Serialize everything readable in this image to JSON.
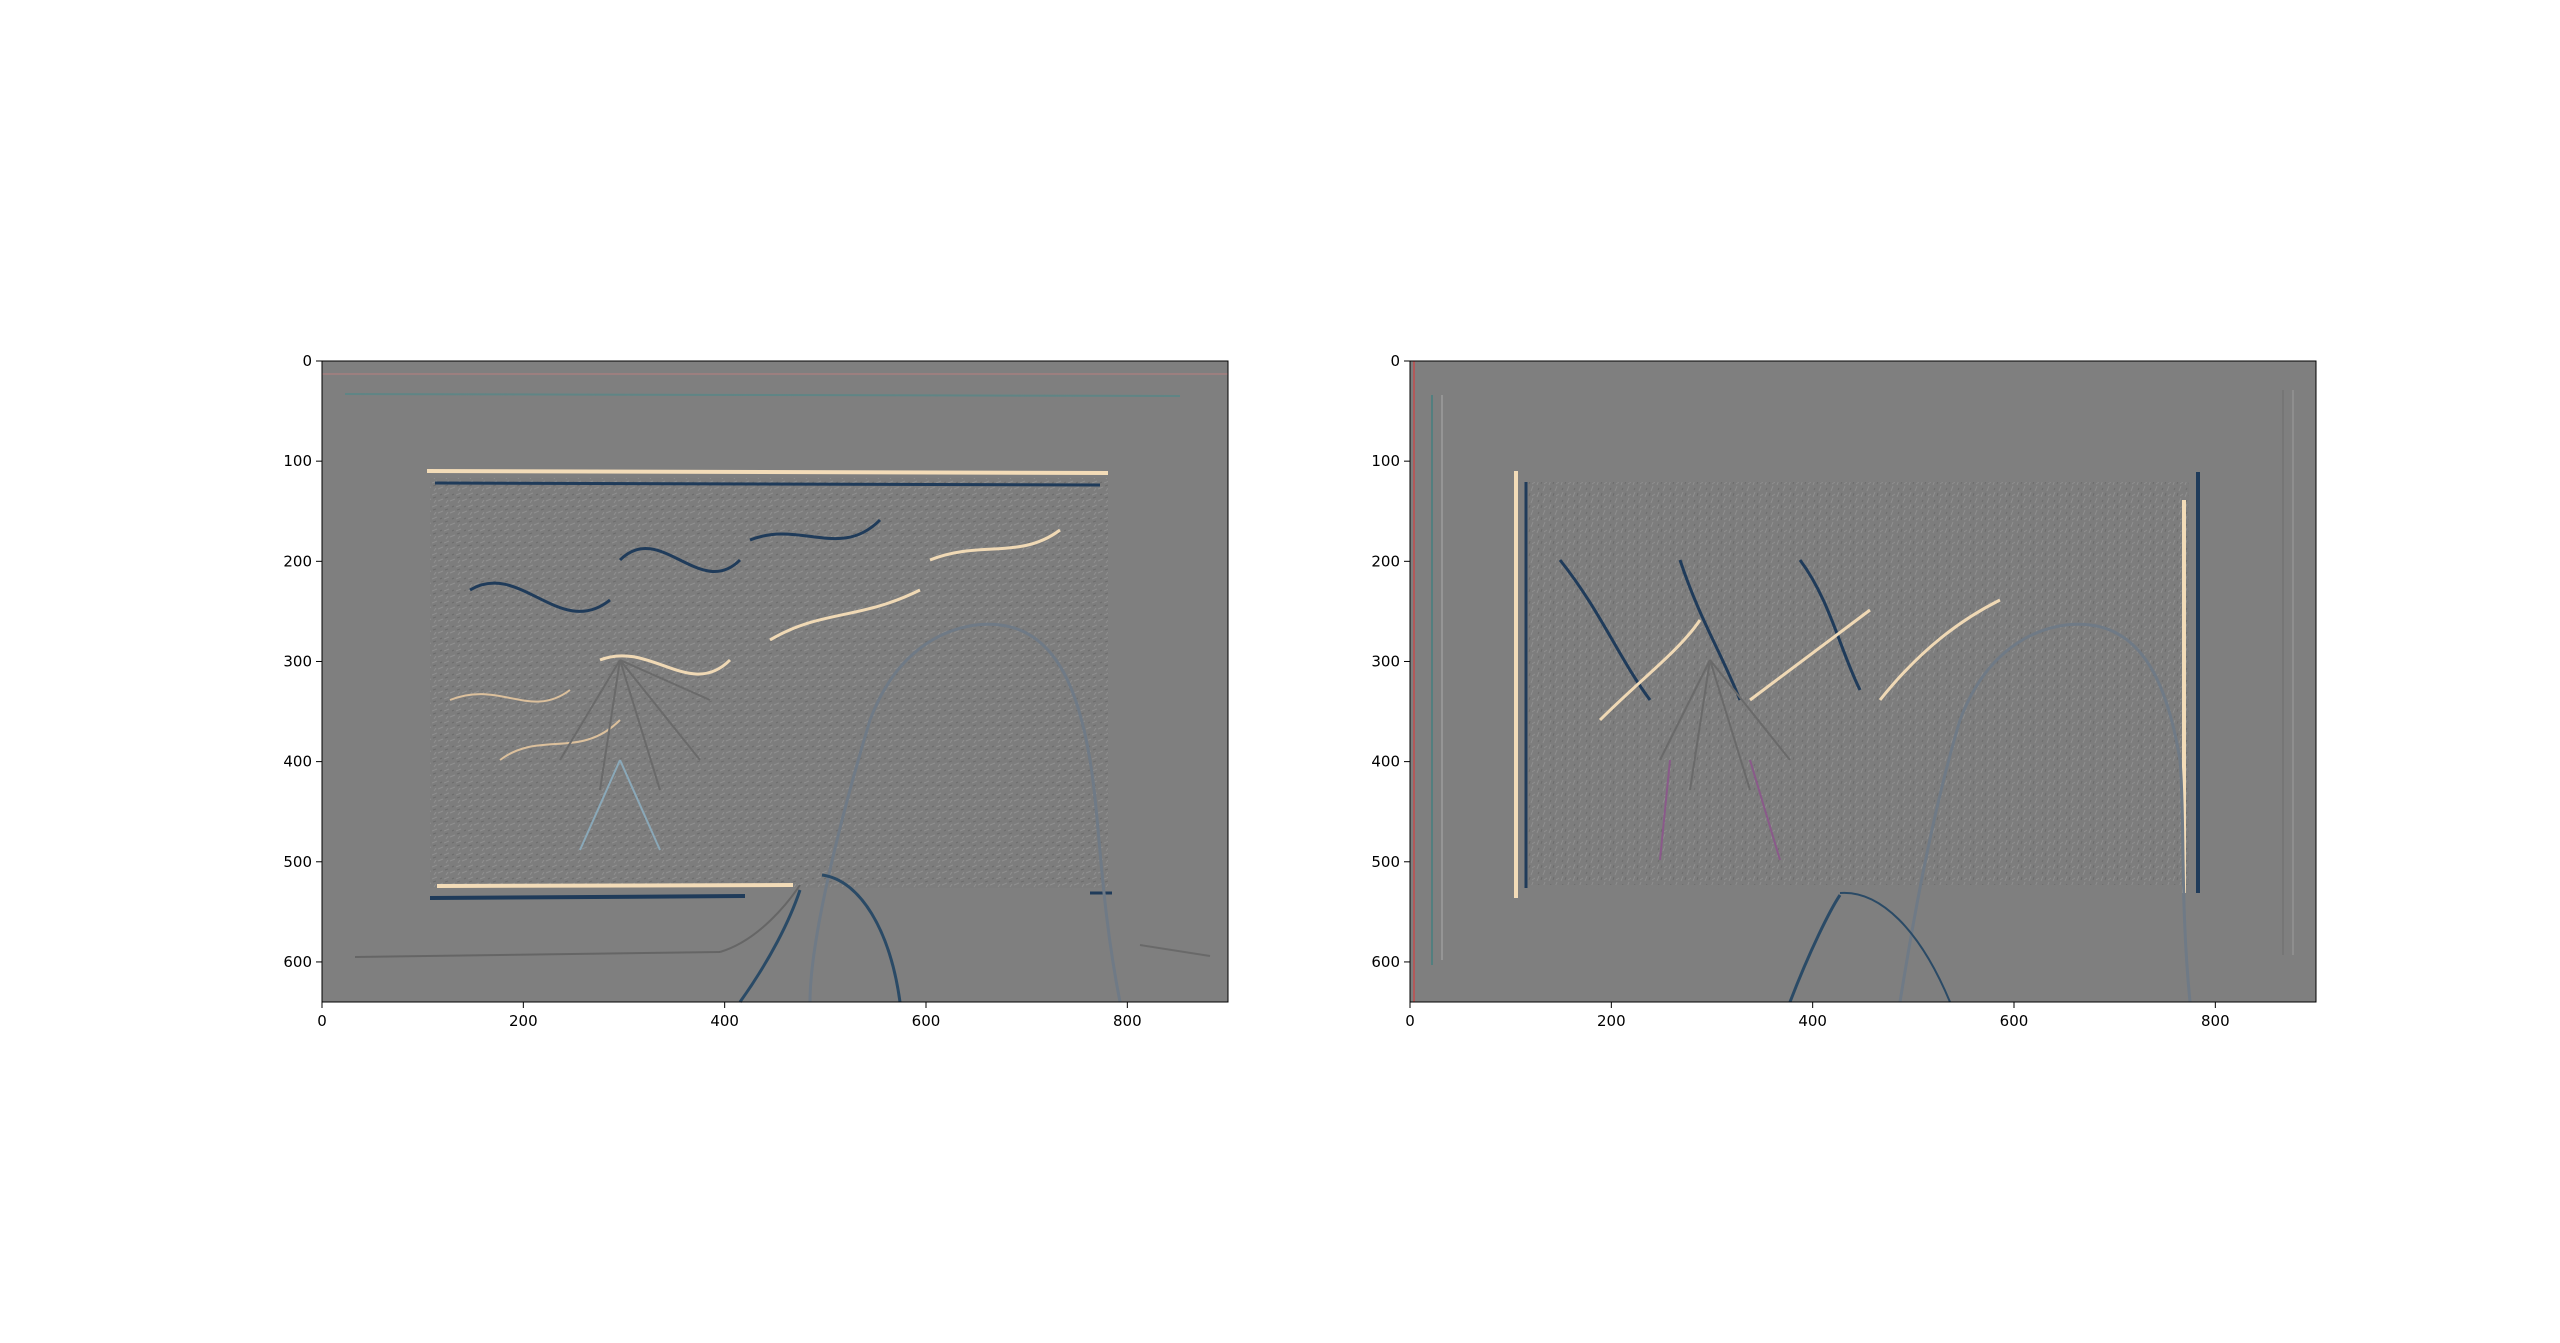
{
  "figure": {
    "background": "#ffffff",
    "panels": [
      {
        "id": "left",
        "description_kind": "horizontal-edge-filter",
        "x_ticks": [
          "0",
          "200",
          "400",
          "600",
          "800"
        ],
        "y_ticks": [
          "0",
          "100",
          "200",
          "300",
          "400",
          "500",
          "600"
        ],
        "x_range": [
          0,
          900
        ],
        "y_range": [
          0,
          640
        ]
      },
      {
        "id": "right",
        "description_kind": "vertical-edge-filter",
        "x_ticks": [
          "0",
          "200",
          "400",
          "600",
          "800"
        ],
        "y_ticks": [
          "0",
          "100",
          "200",
          "300",
          "400",
          "500",
          "600"
        ],
        "x_range": [
          0,
          900
        ],
        "y_range": [
          0,
          640
        ]
      }
    ],
    "colors": {
      "gray_bg": "#7f7f7f",
      "light_edge": "#f0d9b5",
      "dark_edge": "#1f3b5a",
      "teal_edge": "#4a8a8a",
      "red_edge": "#c05050"
    }
  }
}
